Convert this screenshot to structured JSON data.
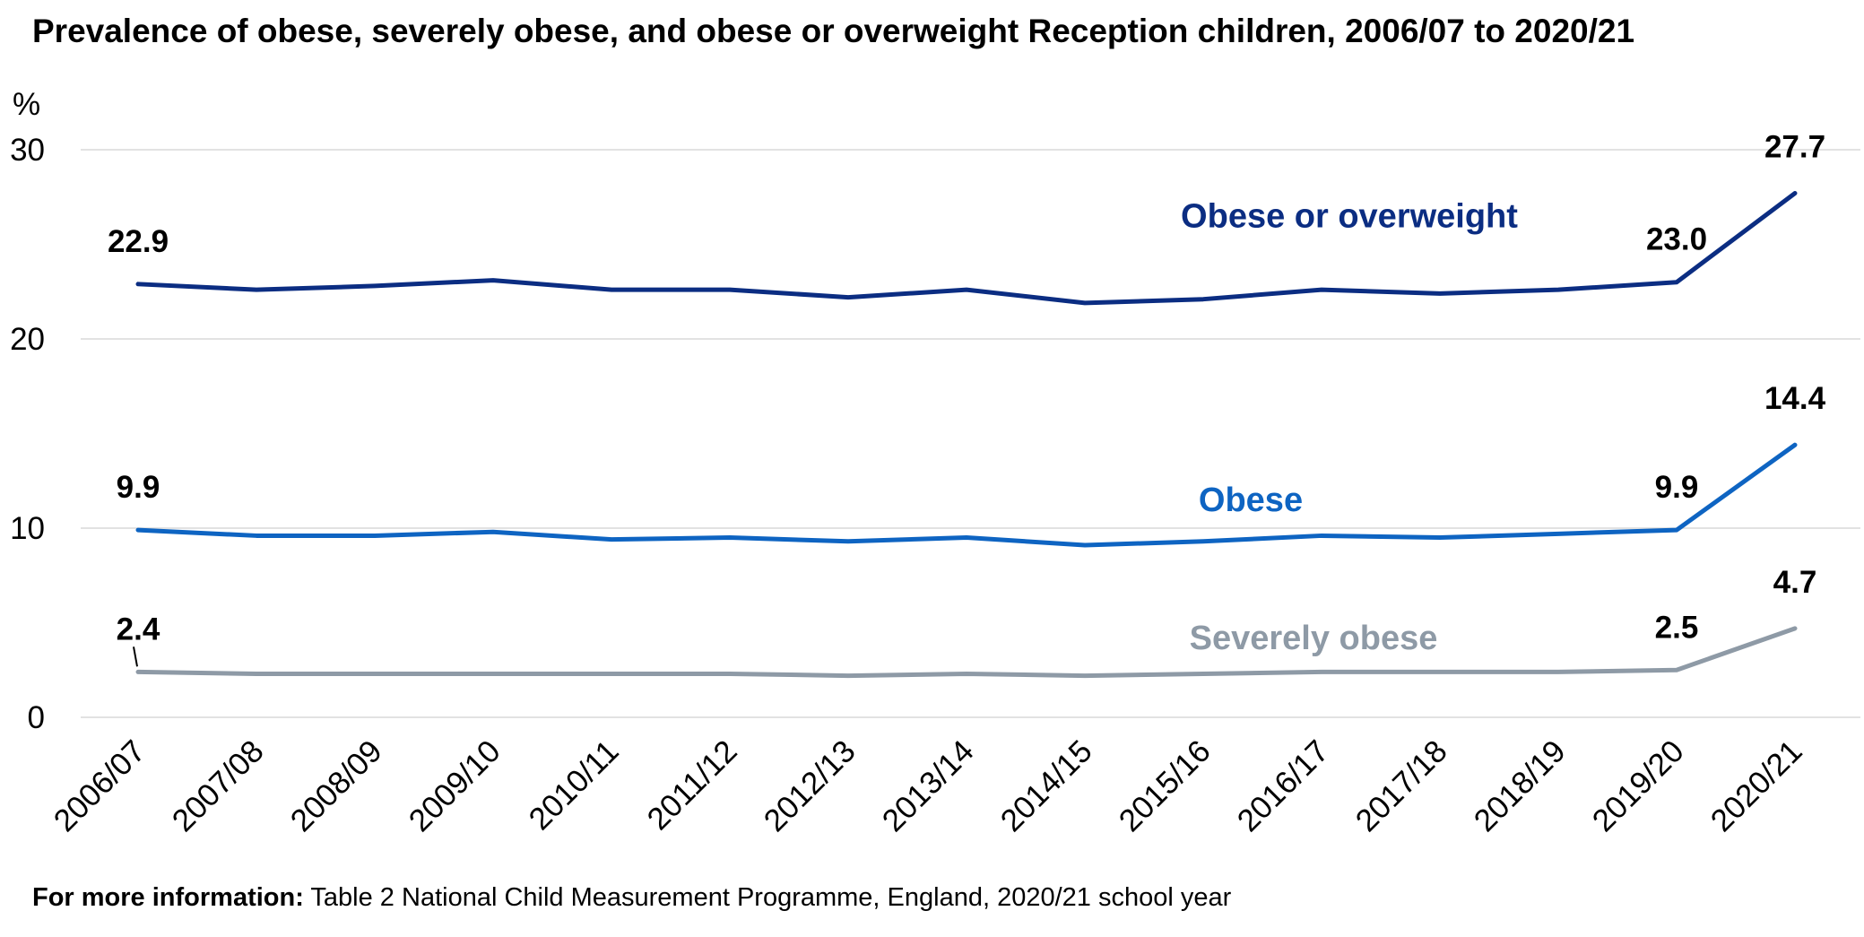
{
  "chart_data": {
    "type": "line",
    "title": "Prevalence of obese, severely obese, and obese or overweight Reception children, 2006/07 to 2020/21",
    "ylabel": "%",
    "ylim": [
      0,
      30
    ],
    "yticks": [
      "0",
      "10",
      "20",
      "30"
    ],
    "grid": true,
    "categories": [
      "2006/07",
      "2007/08",
      "2008/09",
      "2009/10",
      "2010/11",
      "2011/12",
      "2012/13",
      "2013/14",
      "2014/15",
      "2015/16",
      "2016/17",
      "2017/18",
      "2018/19",
      "2019/20",
      "2020/21"
    ],
    "series": [
      {
        "name": "Obese or overweight",
        "color": "#0b2d82",
        "values": [
          22.9,
          22.6,
          22.8,
          23.1,
          22.6,
          22.6,
          22.2,
          22.6,
          21.9,
          22.1,
          22.6,
          22.4,
          22.6,
          23.0,
          27.7
        ],
        "labels": [
          {
            "index": 0,
            "text": "22.9"
          },
          {
            "index": 13,
            "text": "23.0"
          },
          {
            "index": 14,
            "text": "27.7"
          }
        ]
      },
      {
        "name": "Obese",
        "color": "#0e64c2",
        "values": [
          9.9,
          9.6,
          9.6,
          9.8,
          9.4,
          9.5,
          9.3,
          9.5,
          9.1,
          9.3,
          9.6,
          9.5,
          9.7,
          9.9,
          14.4
        ],
        "labels": [
          {
            "index": 0,
            "text": "9.9"
          },
          {
            "index": 13,
            "text": "9.9"
          },
          {
            "index": 14,
            "text": "14.4"
          }
        ]
      },
      {
        "name": "Severely obese",
        "color": "#8e9aa6",
        "values": [
          2.4,
          2.3,
          2.3,
          2.3,
          2.3,
          2.3,
          2.2,
          2.3,
          2.2,
          2.3,
          2.4,
          2.4,
          2.4,
          2.5,
          4.7
        ],
        "labels": [
          {
            "index": 0,
            "text": "2.4"
          },
          {
            "index": 13,
            "text": "2.5"
          },
          {
            "index": 14,
            "text": "4.7"
          }
        ]
      }
    ]
  },
  "footnote": {
    "bold": "For more information:",
    "text": " Table 2 National Child Measurement Programme, England, 2020/21 school year"
  }
}
